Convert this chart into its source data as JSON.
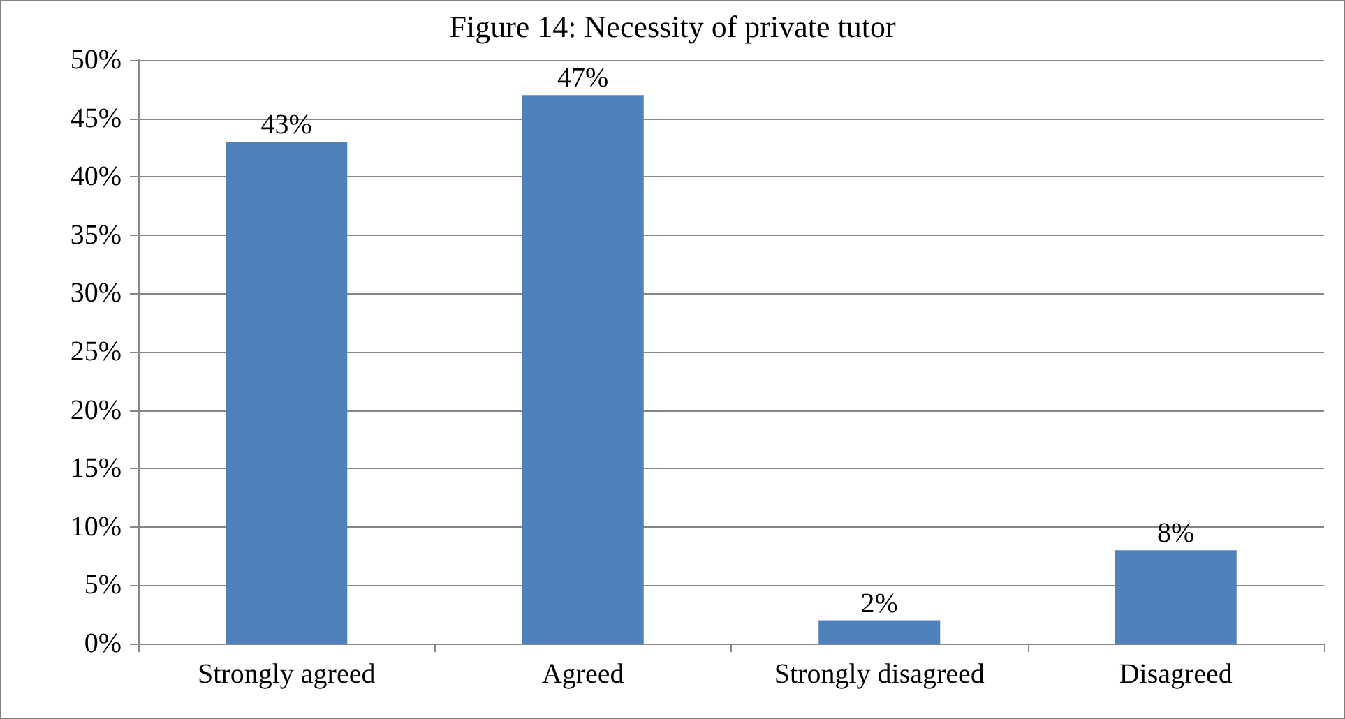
{
  "chart_data": {
    "type": "bar",
    "title": "Figure 14: Necessity of private tutor",
    "categories": [
      "Strongly agreed",
      "Agreed",
      "Strongly disagreed",
      "Disagreed"
    ],
    "values": [
      43,
      47,
      2,
      8
    ],
    "value_labels": [
      "43%",
      "47%",
      "2%",
      "8%"
    ],
    "color": "#4f81bd",
    "ylim": [
      0,
      50
    ],
    "yticks": [
      {
        "value": 0,
        "label": "0%"
      },
      {
        "value": 5,
        "label": "5%"
      },
      {
        "value": 10,
        "label": "10%"
      },
      {
        "value": 15,
        "label": "15%"
      },
      {
        "value": 20,
        "label": "20%"
      },
      {
        "value": 25,
        "label": "25%"
      },
      {
        "value": 30,
        "label": "30%"
      },
      {
        "value": 35,
        "label": "35%"
      },
      {
        "value": 40,
        "label": "40%"
      },
      {
        "value": 45,
        "label": "45%"
      },
      {
        "value": 50,
        "label": "50%"
      }
    ],
    "grid": "y"
  }
}
